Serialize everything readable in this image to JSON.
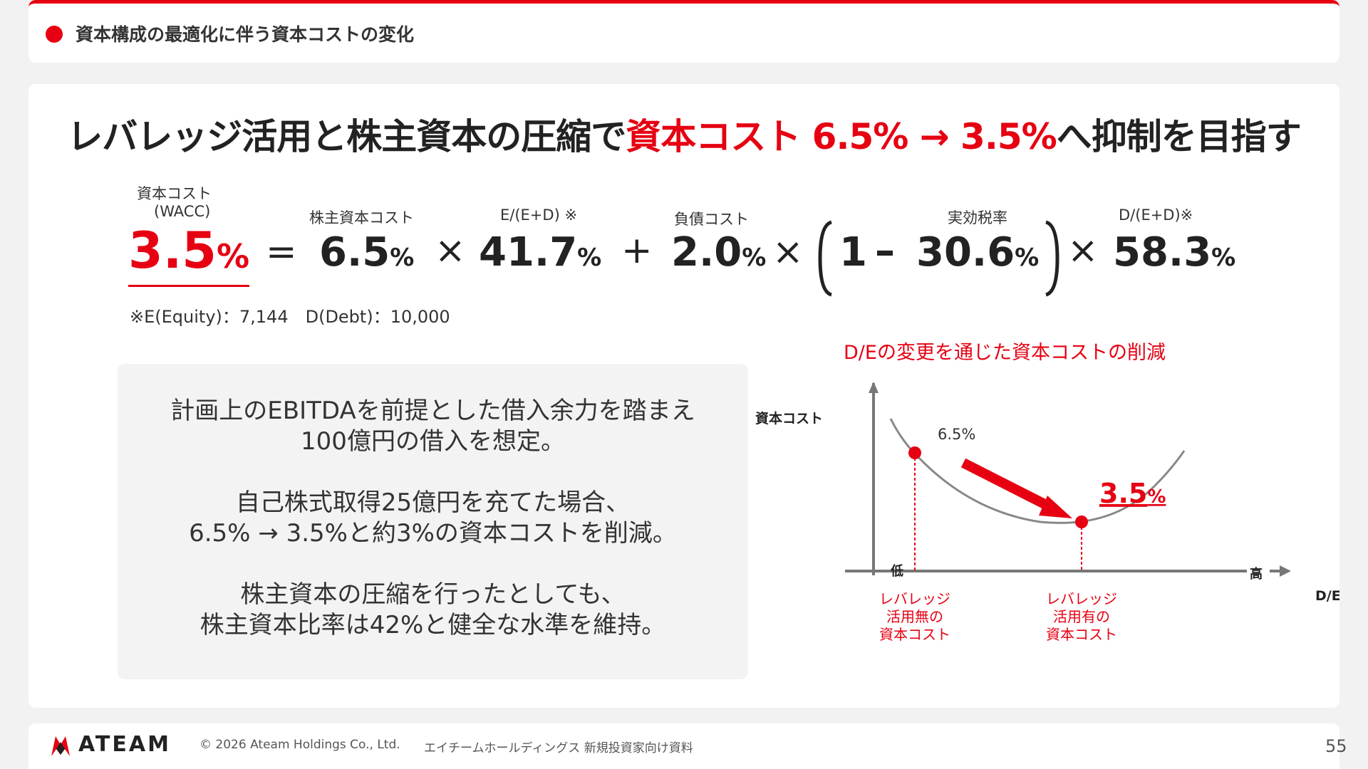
{
  "header": {
    "title": "資本構成の最適化に伴う資本コストの変化"
  },
  "headline": {
    "part1": "レバレッジ活用と株主資本の圧縮で",
    "part2": "資本コスト 6.5% → 3.5%",
    "part3": "へ抑制を目指す"
  },
  "formula": {
    "wacc_label": "資本コスト",
    "wacc_sub": "(WACC)",
    "wacc_value": "3.5",
    "equals": "=",
    "equity_cost_label": "株主資本コスト",
    "equity_cost_value": "6.5",
    "times": "×",
    "equity_ratio_label": "E/(E+D) ※",
    "equity_ratio_value": "41.7",
    "plus": "+",
    "debt_cost_label": "負債コスト",
    "debt_cost_value": "2.0",
    "tax_label": "実効税率",
    "tax_one": "1",
    "minus": "–",
    "tax_value": "30.6",
    "debt_ratio_label": "D/(E+D)※",
    "debt_ratio_value": "58.3",
    "pct": "%",
    "note": "※E(Equity)：7,144　D(Debt)：10,000"
  },
  "textbox": {
    "line1": "計画上のEBITDAを前提とした借入余力を踏まえ",
    "line2": "100億円の借入を想定。",
    "line3": "自己株式取得25億円を充てた場合、",
    "line4": "6.5% → 3.5%と約3%の資本コストを削減。",
    "line5": "株主資本の圧縮を行ったとしても、",
    "line6": "株主資本比率は42%と健全な水準を維持。"
  },
  "chart": {
    "title": "D/Eの変更を通じた資本コストの削減",
    "y_label": "資本コスト",
    "x_label": "D/E",
    "low": "低",
    "high": "高",
    "point1_label": "6.5%",
    "point2_value": "3.5",
    "point2_pct": "%",
    "before_label": [
      "レバレッジ",
      "活用無の",
      "資本コスト"
    ],
    "after_label": [
      "レバレッジ",
      "活用有の",
      "資本コスト"
    ],
    "accent": "#e60012"
  },
  "chart_data": {
    "type": "line",
    "title": "D/Eの変更を通じた資本コストの削減",
    "xlabel": "D/E",
    "ylabel": "資本コスト",
    "points": [
      {
        "label": "レバレッジ活用無の資本コスト",
        "y": 6.5
      },
      {
        "label": "レバレッジ活用有の資本コスト",
        "y": 3.5
      }
    ]
  },
  "footer": {
    "logo": "ATEAM",
    "copyright": "© 2026 Ateam Holdings Co., Ltd.",
    "material": "エイチームホールディングス 新規投資家向け資料",
    "page": "55"
  }
}
